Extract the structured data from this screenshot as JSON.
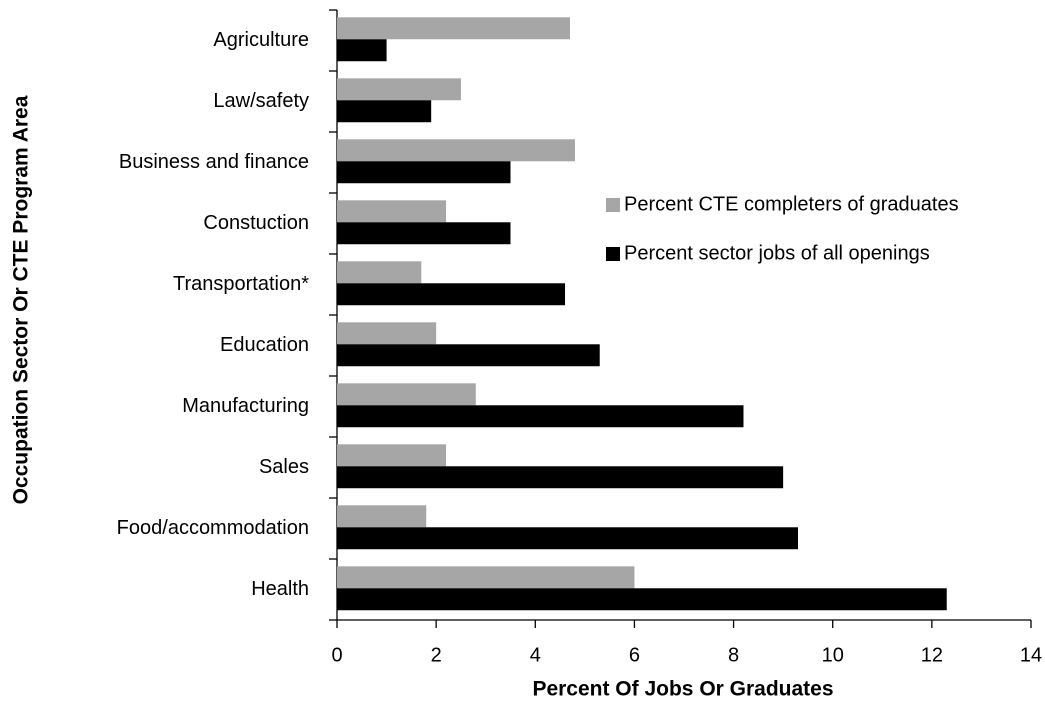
{
  "chart_data": {
    "type": "barh",
    "xlabel": "Percent Of Jobs Or Graduates",
    "ylabel": "Occupation Sector Or CTE Program Area",
    "categories": [
      "Agriculture",
      "Law/safety",
      "Business and finance",
      "Constuction",
      "Transportation*",
      "Education",
      "Manufacturing",
      "Sales",
      "Food/accommodation",
      "Health"
    ],
    "series": [
      {
        "name": "Percent CTE completers of graduates",
        "color": "#a6a6a6",
        "values": [
          4.7,
          2.5,
          4.8,
          2.2,
          1.7,
          2.0,
          2.8,
          2.2,
          1.8,
          6.0
        ]
      },
      {
        "name": "Percent sector jobs of all openings",
        "color": "#000000",
        "values": [
          1.0,
          1.9,
          3.5,
          3.5,
          4.6,
          5.3,
          8.2,
          9.0,
          9.3,
          12.3
        ]
      }
    ],
    "xlim": [
      0,
      14
    ],
    "xticks": [
      0,
      2,
      4,
      6,
      8,
      10,
      12,
      14
    ],
    "grid": false,
    "legend": "right"
  }
}
